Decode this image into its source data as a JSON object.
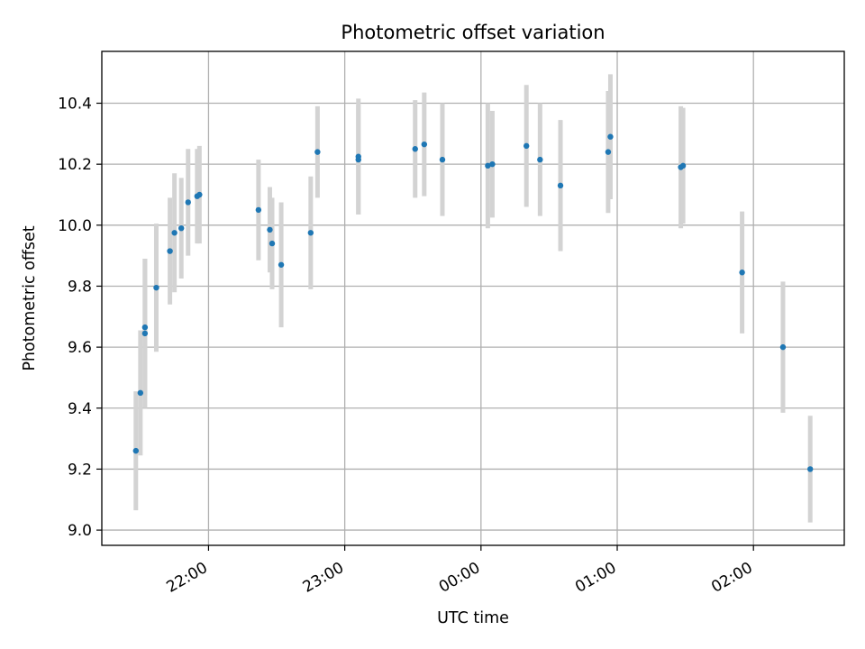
{
  "chart_data": {
    "type": "scatter",
    "title": "Photometric offset variation",
    "xlabel": "UTC time",
    "ylabel": "Photometric offset",
    "x_axis": {
      "type": "time",
      "range": [
        "21:13",
        "02:40"
      ],
      "ticks": [
        "22:00",
        "23:00",
        "00:00",
        "01:00",
        "02:00"
      ]
    },
    "y_axis": {
      "range": [
        8.95,
        10.57
      ],
      "ticks": [
        "9.0",
        "9.2",
        "9.4",
        "9.6",
        "9.8",
        "10.0",
        "10.2",
        "10.4"
      ]
    },
    "grid": true,
    "legend": "none",
    "colors": {
      "point": "#1f77b4",
      "errorbar": "#d3d3d3",
      "grid": "#b0b0b0"
    },
    "series": [
      {
        "points": [
          {
            "x": "21:28",
            "y": 9.26,
            "yerr": 0.195
          },
          {
            "x": "21:30",
            "y": 9.45,
            "yerr": 0.205
          },
          {
            "x": "21:32",
            "y": 9.645,
            "yerr": 0.245
          },
          {
            "x": "21:32",
            "y": 9.665,
            "yerr": 0.225
          },
          {
            "x": "21:37",
            "y": 9.795,
            "yerr": 0.21
          },
          {
            "x": "21:43",
            "y": 9.915,
            "yerr": 0.175
          },
          {
            "x": "21:45",
            "y": 9.975,
            "yerr": 0.195
          },
          {
            "x": "21:48",
            "y": 9.99,
            "yerr": 0.165
          },
          {
            "x": "21:51",
            "y": 10.075,
            "yerr": 0.175
          },
          {
            "x": "21:55",
            "y": 10.095,
            "yerr": 0.155
          },
          {
            "x": "21:56",
            "y": 10.1,
            "yerr": 0.16
          },
          {
            "x": "22:22",
            "y": 10.05,
            "yerr": 0.165
          },
          {
            "x": "22:27",
            "y": 9.985,
            "yerr": 0.14
          },
          {
            "x": "22:28",
            "y": 9.94,
            "yerr": 0.15
          },
          {
            "x": "22:32",
            "y": 9.87,
            "yerr": 0.205
          },
          {
            "x": "22:45",
            "y": 9.975,
            "yerr": 0.185
          },
          {
            "x": "22:48",
            "y": 10.24,
            "yerr": 0.15
          },
          {
            "x": "23:06",
            "y": 10.215,
            "yerr": 0.18
          },
          {
            "x": "23:06",
            "y": 10.225,
            "yerr": 0.19
          },
          {
            "x": "23:31",
            "y": 10.25,
            "yerr": 0.16
          },
          {
            "x": "23:35",
            "y": 10.265,
            "yerr": 0.17
          },
          {
            "x": "23:43",
            "y": 10.215,
            "yerr": 0.185
          },
          {
            "x": "00:03",
            "y": 10.195,
            "yerr": 0.205
          },
          {
            "x": "00:05",
            "y": 10.2,
            "yerr": 0.175
          },
          {
            "x": "00:20",
            "y": 10.26,
            "yerr": 0.2
          },
          {
            "x": "00:26",
            "y": 10.215,
            "yerr": 0.185
          },
          {
            "x": "00:35",
            "y": 10.13,
            "yerr": 0.215
          },
          {
            "x": "00:56",
            "y": 10.24,
            "yerr": 0.2
          },
          {
            "x": "00:57",
            "y": 10.29,
            "yerr": 0.205
          },
          {
            "x": "01:28",
            "y": 10.19,
            "yerr": 0.2
          },
          {
            "x": "01:29",
            "y": 10.195,
            "yerr": 0.19
          },
          {
            "x": "01:55",
            "y": 9.845,
            "yerr": 0.2
          },
          {
            "x": "02:13",
            "y": 9.6,
            "yerr": 0.215
          },
          {
            "x": "02:25",
            "y": 9.2,
            "yerr": 0.175
          }
        ]
      }
    ]
  }
}
